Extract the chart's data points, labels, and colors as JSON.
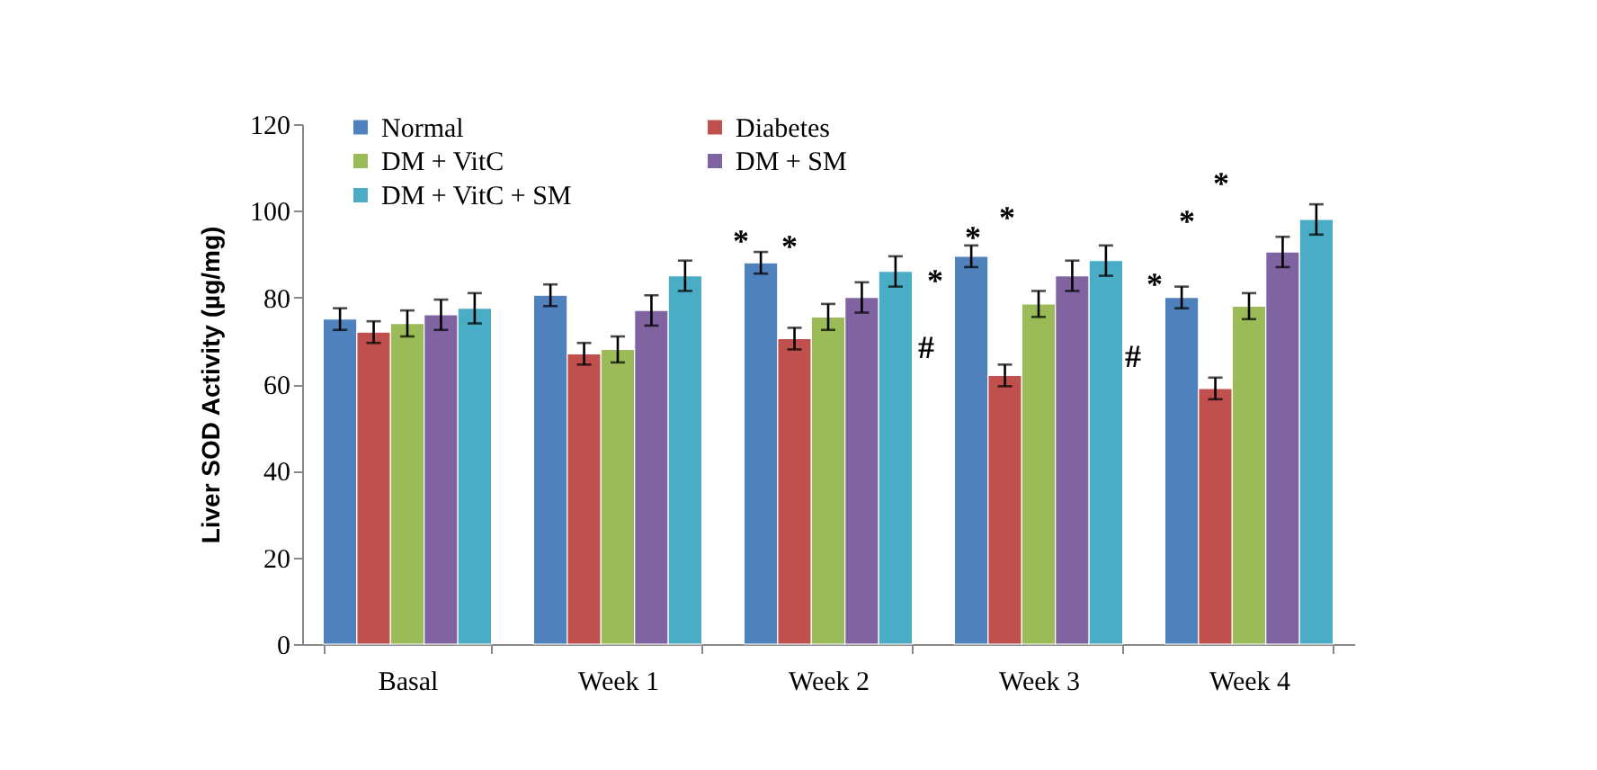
{
  "chart_data": {
    "type": "bar",
    "ylabel": "Liver SOD Activity (µg/mg)",
    "categories": [
      "Basal",
      "Week 1",
      "Week 2",
      "Week 3",
      "Week 4"
    ],
    "series": [
      {
        "name": "Normal",
        "color": "#4f81bd",
        "values": [
          75,
          80.5,
          88,
          89.5,
          80
        ],
        "errors": [
          2.5,
          2.5,
          2.5,
          2.5,
          2.5
        ]
      },
      {
        "name": "Diabetes",
        "color": "#c0504d",
        "values": [
          72,
          67,
          70.5,
          62,
          59
        ],
        "errors": [
          2.5,
          2.5,
          2.5,
          2.5,
          2.5
        ]
      },
      {
        "name": "DM + VitC",
        "color": "#9bbb59",
        "values": [
          74,
          68,
          75.5,
          78.5,
          78
        ],
        "errors": [
          3,
          3,
          3,
          3,
          3
        ]
      },
      {
        "name": "DM + SM",
        "color": "#8064a2",
        "values": [
          76,
          77,
          80,
          85,
          90.5
        ],
        "errors": [
          3.5,
          3.5,
          3.5,
          3.5,
          3.5
        ]
      },
      {
        "name": "DM + VitC + SM",
        "color": "#4bacc6",
        "values": [
          77.5,
          85,
          86,
          88.5,
          98
        ],
        "errors": [
          3.5,
          3.5,
          3.5,
          3.5,
          3.5
        ]
      }
    ],
    "ylim": [
      0,
      120
    ],
    "yticks": [
      0,
      20,
      40,
      60,
      80,
      100,
      120
    ],
    "grid": false,
    "legend": "top",
    "annotations": [
      "*",
      "*",
      "#",
      "*",
      "*",
      "*",
      "#",
      "*",
      "*",
      "*"
    ]
  }
}
